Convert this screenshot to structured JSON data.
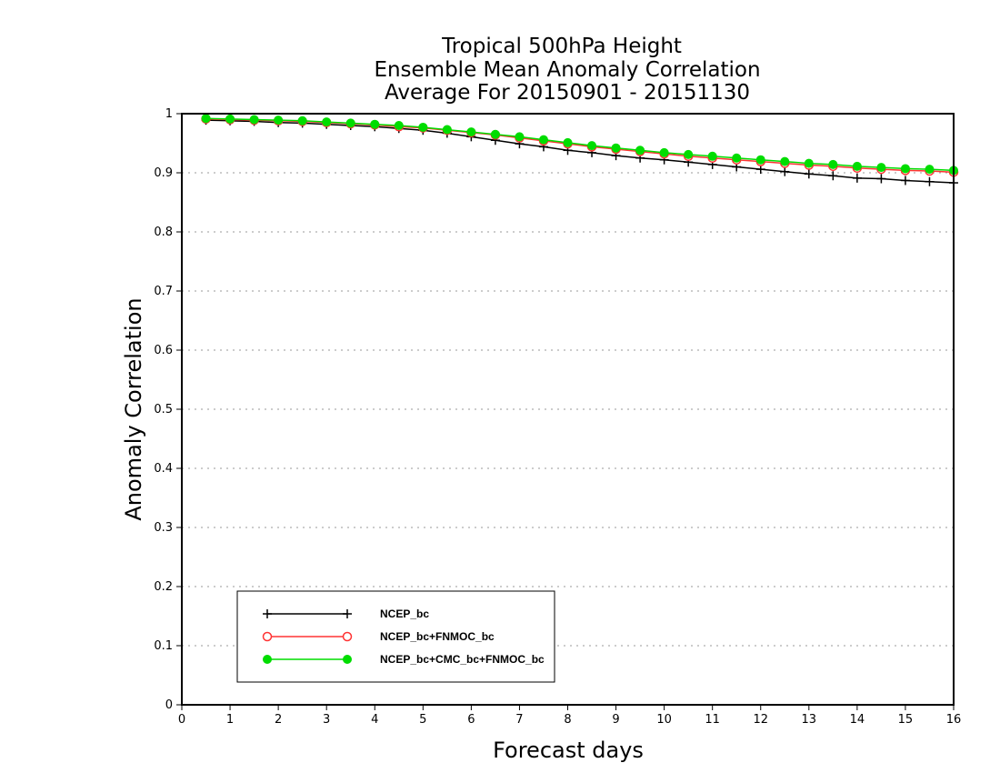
{
  "chart_data": {
    "type": "line",
    "title": [
      "Tropical 500hPa Height",
      "Ensemble Mean Anomaly Correlation",
      "Average For 20150901 - 20151130"
    ],
    "xlabel": "Forecast days",
    "ylabel": "Anomaly Correlation",
    "xlim": [
      0,
      16
    ],
    "ylim": [
      0,
      1
    ],
    "xticks": [
      "0",
      "1",
      "2",
      "3",
      "4",
      "5",
      "6",
      "7",
      "8",
      "9",
      "10",
      "11",
      "12",
      "13",
      "14",
      "15",
      "16"
    ],
    "yticks": [
      "0",
      "0.1",
      "0.2",
      "0.3",
      "0.4",
      "0.5",
      "0.6",
      "0.7",
      "0.8",
      "0.9",
      "1"
    ],
    "grid": "horizontal dotted",
    "legend_position": "bottom-left",
    "x": [
      0.5,
      1,
      1.5,
      2,
      2.5,
      3,
      3.5,
      4,
      4.5,
      5,
      5.5,
      6,
      6.5,
      7,
      7.5,
      8,
      8.5,
      9,
      9.5,
      10,
      10.5,
      11,
      11.5,
      12,
      12.5,
      13,
      13.5,
      14,
      14.5,
      15,
      15.5,
      16
    ],
    "series": [
      {
        "name": "NCEP_bc",
        "color": "#000000",
        "marker": "plus",
        "values": [
          0.989,
          0.988,
          0.987,
          0.985,
          0.984,
          0.982,
          0.98,
          0.978,
          0.975,
          0.972,
          0.967,
          0.961,
          0.955,
          0.949,
          0.944,
          0.938,
          0.934,
          0.929,
          0.925,
          0.922,
          0.918,
          0.914,
          0.91,
          0.906,
          0.902,
          0.898,
          0.895,
          0.891,
          0.89,
          0.887,
          0.885,
          0.883
        ]
      },
      {
        "name": "NCEP_bc+FNMOC_bc",
        "color": "#ff3333",
        "marker": "open-circle",
        "values": [
          0.991,
          0.99,
          0.989,
          0.988,
          0.987,
          0.985,
          0.983,
          0.981,
          0.978,
          0.976,
          0.972,
          0.968,
          0.964,
          0.959,
          0.954,
          0.949,
          0.944,
          0.94,
          0.936,
          0.932,
          0.928,
          0.925,
          0.922,
          0.919,
          0.916,
          0.913,
          0.911,
          0.908,
          0.906,
          0.904,
          0.903,
          0.901
        ]
      },
      {
        "name": "NCEP_bc+CMC_bc+FNMOC_bc",
        "color": "#00dd00",
        "marker": "filled-circle",
        "values": [
          0.992,
          0.991,
          0.99,
          0.989,
          0.988,
          0.986,
          0.984,
          0.982,
          0.98,
          0.977,
          0.973,
          0.969,
          0.965,
          0.961,
          0.956,
          0.951,
          0.946,
          0.942,
          0.938,
          0.934,
          0.931,
          0.928,
          0.925,
          0.922,
          0.919,
          0.916,
          0.914,
          0.911,
          0.909,
          0.907,
          0.906,
          0.904
        ]
      }
    ]
  }
}
